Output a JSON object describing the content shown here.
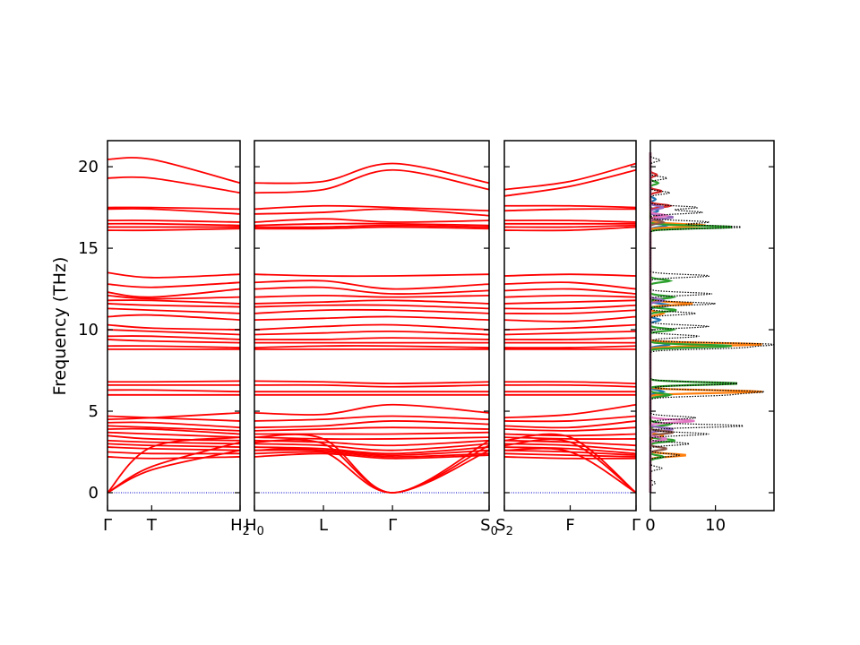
{
  "chart_data": {
    "type": "line",
    "ylabel": "Frequency (THz)",
    "ylim": [
      -1.1,
      21.6
    ],
    "yticks": [
      "0",
      "5",
      "10",
      "15",
      "20"
    ],
    "band_color": "#ff0000",
    "zero_line_color": "#0000cd",
    "panels": [
      {
        "segments": [
          {
            "x_range": [
              0,
              1
            ],
            "labels": [
              "Γ",
              "T"
            ]
          },
          {
            "x_range": [
              1,
              3
            ],
            "labels": [
              "T",
              "H2"
            ]
          }
        ],
        "x_ticks": [
          {
            "x": 0,
            "label": "Γ"
          },
          {
            "x": 1,
            "label": "T"
          },
          {
            "x": 3,
            "label": "H2"
          }
        ],
        "flat_bands": [
          [
            20.45,
            20.45,
            19.0
          ],
          [
            19.3,
            19.3,
            18.4
          ],
          [
            17.5,
            17.5,
            17.4
          ],
          [
            17.4,
            17.4,
            17.1
          ],
          [
            16.7,
            16.7,
            16.6
          ],
          [
            16.5,
            16.5,
            16.4
          ],
          [
            16.3,
            16.3,
            16.3
          ],
          [
            16.1,
            16.1,
            16.2
          ],
          [
            13.5,
            13.2,
            13.4
          ],
          [
            12.8,
            12.6,
            12.9
          ],
          [
            12.3,
            12.0,
            12.5
          ],
          [
            12.1,
            11.9,
            12.0
          ],
          [
            11.8,
            11.8,
            11.6
          ],
          [
            11.6,
            11.5,
            11.4
          ],
          [
            11.3,
            11.2,
            11.0
          ],
          [
            10.8,
            10.9,
            10.6
          ],
          [
            10.3,
            10.1,
            10.0
          ],
          [
            10.0,
            9.9,
            9.7
          ],
          [
            9.6,
            9.6,
            9.4
          ],
          [
            9.4,
            9.3,
            9.2
          ],
          [
            9.0,
            9.0,
            8.9
          ],
          [
            8.8,
            8.8,
            8.8
          ],
          [
            6.8,
            6.8,
            6.85
          ],
          [
            6.6,
            6.6,
            6.6
          ],
          [
            6.3,
            6.3,
            6.2
          ],
          [
            6.0,
            6.0,
            6.0
          ],
          [
            4.7,
            4.6,
            4.4
          ],
          [
            4.5,
            4.6,
            4.9
          ],
          [
            4.3,
            4.3,
            4.0
          ],
          [
            4.1,
            4.0,
            3.8
          ],
          [
            3.9,
            3.9,
            3.6
          ],
          [
            3.7,
            3.6,
            3.4
          ],
          [
            3.5,
            3.3,
            3.2
          ],
          [
            3.2,
            3.1,
            3.0
          ],
          [
            3.0,
            2.9,
            2.8
          ],
          [
            2.8,
            2.7,
            2.6
          ],
          [
            2.5,
            2.4,
            2.4
          ],
          [
            2.2,
            2.1,
            2.2
          ]
        ],
        "acoustic_bands": [
          [
            0,
            2.8,
            3.4
          ],
          [
            0,
            1.6,
            3.1
          ],
          [
            0,
            1.4,
            2.6
          ]
        ]
      },
      {
        "segments": [
          {
            "x_range": [
              0,
              1
            ],
            "labels": [
              "H0",
              "L"
            ]
          },
          {
            "x_range": [
              1,
              2
            ],
            "labels": [
              "L",
              "Γ"
            ]
          },
          {
            "x_range": [
              2,
              3.4
            ],
            "labels": [
              "Γ",
              "S0"
            ]
          }
        ],
        "x_ticks": [
          {
            "x": 0,
            "label": "H0"
          },
          {
            "x": 1,
            "label": "L"
          },
          {
            "x": 2,
            "label": "Γ"
          },
          {
            "x": 3.4,
            "label": "S0"
          }
        ],
        "flat_bands": [
          [
            19.0,
            19.1,
            20.2,
            19.0
          ],
          [
            18.4,
            18.6,
            19.8,
            18.6
          ],
          [
            17.4,
            17.6,
            17.5,
            17.3
          ],
          [
            17.1,
            17.2,
            17.4,
            17.0
          ],
          [
            16.6,
            16.8,
            16.6,
            16.7
          ],
          [
            16.4,
            16.5,
            16.5,
            16.4
          ],
          [
            16.3,
            16.3,
            16.4,
            16.3
          ],
          [
            16.2,
            16.2,
            16.3,
            16.2
          ],
          [
            13.4,
            13.3,
            13.3,
            13.4
          ],
          [
            12.9,
            13.0,
            12.5,
            12.8
          ],
          [
            12.5,
            12.6,
            12.2,
            12.4
          ],
          [
            12.0,
            12.1,
            12.0,
            12.1
          ],
          [
            11.6,
            11.7,
            11.8,
            11.6
          ],
          [
            11.4,
            11.5,
            11.5,
            11.3
          ],
          [
            11.0,
            11.2,
            11.2,
            11.0
          ],
          [
            10.6,
            10.7,
            10.8,
            10.6
          ],
          [
            10.0,
            10.2,
            10.3,
            10.0
          ],
          [
            9.7,
            9.8,
            9.9,
            9.7
          ],
          [
            9.4,
            9.4,
            9.5,
            9.4
          ],
          [
            9.2,
            9.2,
            9.2,
            9.2
          ],
          [
            8.9,
            9.0,
            9.0,
            8.9
          ],
          [
            8.8,
            8.8,
            8.8,
            8.8
          ],
          [
            6.85,
            6.8,
            6.7,
            6.8
          ],
          [
            6.6,
            6.6,
            6.5,
            6.6
          ],
          [
            6.2,
            6.2,
            6.2,
            6.2
          ],
          [
            6.0,
            6.0,
            6.0,
            6.0
          ],
          [
            4.9,
            4.8,
            5.4,
            4.9
          ],
          [
            4.4,
            4.5,
            4.7,
            4.5
          ],
          [
            4.0,
            4.1,
            4.4,
            4.2
          ],
          [
            3.8,
            3.9,
            4.0,
            3.9
          ],
          [
            3.6,
            3.6,
            3.6,
            3.7
          ],
          [
            3.4,
            3.3,
            3.3,
            3.4
          ],
          [
            3.2,
            3.1,
            2.9,
            3.2
          ],
          [
            3.0,
            2.9,
            2.6,
            3.0
          ],
          [
            2.8,
            2.7,
            2.4,
            2.8
          ],
          [
            2.6,
            2.6,
            2.3,
            2.6
          ],
          [
            2.4,
            2.5,
            2.2,
            2.4
          ],
          [
            2.2,
            2.4,
            2.1,
            2.3
          ]
        ],
        "acoustic_bands": [
          [
            3.4,
            3.3,
            0,
            3.2
          ],
          [
            3.1,
            3.0,
            0,
            2.9
          ],
          [
            2.6,
            2.5,
            0,
            2.6
          ]
        ]
      },
      {
        "segments": [
          {
            "x_range": [
              0,
              1
            ],
            "labels": [
              "S2",
              "F"
            ]
          },
          {
            "x_range": [
              1,
              2
            ],
            "labels": [
              "F",
              "Γ"
            ]
          }
        ],
        "x_ticks": [
          {
            "x": 0,
            "label": "S2"
          },
          {
            "x": 1,
            "label": "F"
          },
          {
            "x": 2,
            "label": "Γ"
          }
        ],
        "flat_bands": [
          [
            18.6,
            19.1,
            20.2
          ],
          [
            18.2,
            18.8,
            19.8
          ],
          [
            17.6,
            17.6,
            17.5
          ],
          [
            17.3,
            17.4,
            17.4
          ],
          [
            16.7,
            16.7,
            16.6
          ],
          [
            16.5,
            16.5,
            16.5
          ],
          [
            16.3,
            16.3,
            16.4
          ],
          [
            16.1,
            16.1,
            16.3
          ],
          [
            13.3,
            13.4,
            13.3
          ],
          [
            12.8,
            12.9,
            12.5
          ],
          [
            12.4,
            12.5,
            12.2
          ],
          [
            12.0,
            12.1,
            12.0
          ],
          [
            11.6,
            11.7,
            11.8
          ],
          [
            11.3,
            11.3,
            11.5
          ],
          [
            11.0,
            11.0,
            11.2
          ],
          [
            10.6,
            10.5,
            10.8
          ],
          [
            10.0,
            10.1,
            10.3
          ],
          [
            9.7,
            9.8,
            9.9
          ],
          [
            9.4,
            9.4,
            9.5
          ],
          [
            9.2,
            9.2,
            9.2
          ],
          [
            8.9,
            8.9,
            9.0
          ],
          [
            8.8,
            8.8,
            8.8
          ],
          [
            6.8,
            6.8,
            6.7
          ],
          [
            6.6,
            6.6,
            6.5
          ],
          [
            6.2,
            6.2,
            6.2
          ],
          [
            6.0,
            6.0,
            6.0
          ],
          [
            4.6,
            4.8,
            5.4
          ],
          [
            4.4,
            4.4,
            4.7
          ],
          [
            4.1,
            4.0,
            4.4
          ],
          [
            3.9,
            3.8,
            4.0
          ],
          [
            3.6,
            3.5,
            3.6
          ],
          [
            3.4,
            3.3,
            3.3
          ],
          [
            3.2,
            3.1,
            2.9
          ],
          [
            3.0,
            2.9,
            2.6
          ],
          [
            2.8,
            2.7,
            2.4
          ],
          [
            2.6,
            2.5,
            2.3
          ],
          [
            2.4,
            2.3,
            2.2
          ],
          [
            2.2,
            2.1,
            2.1
          ]
        ],
        "acoustic_bands": [
          [
            3.2,
            3.4,
            0
          ],
          [
            2.9,
            3.1,
            0
          ],
          [
            2.6,
            2.5,
            0
          ]
        ]
      }
    ],
    "dos": {
      "xlim": [
        0,
        19
      ],
      "xticks": [
        "0",
        "10"
      ],
      "total": {
        "color": "#000000",
        "style": "dotted",
        "peaks": [
          [
            0.6,
            0.8
          ],
          [
            1.5,
            1.8
          ],
          [
            2.3,
            4.5
          ],
          [
            3.0,
            6.0
          ],
          [
            3.6,
            9.0
          ],
          [
            4.1,
            14.6
          ],
          [
            4.6,
            7.0
          ],
          [
            6.0,
            11.0
          ],
          [
            6.2,
            16.6
          ],
          [
            6.7,
            13.7
          ],
          [
            8.9,
            13.0
          ],
          [
            9.1,
            18.4
          ],
          [
            9.6,
            7.5
          ],
          [
            10.2,
            9.0
          ],
          [
            11.0,
            7.0
          ],
          [
            11.6,
            10.0
          ],
          [
            12.2,
            9.5
          ],
          [
            13.3,
            9.2
          ],
          [
            16.3,
            14.2
          ],
          [
            16.6,
            9.0
          ],
          [
            17.2,
            8.0
          ],
          [
            17.5,
            7.3
          ],
          [
            18.4,
            3.0
          ],
          [
            19.3,
            2.6
          ],
          [
            20.4,
            1.5
          ]
        ]
      },
      "projections": [
        {
          "color": "#1f77b4",
          "peaks": [
            [
              3.3,
              2.5
            ],
            [
              6.2,
              2.0
            ],
            [
              9.1,
              3.0
            ],
            [
              10.6,
              1.5
            ],
            [
              11.5,
              3.0
            ],
            [
              16.4,
              2.5
            ],
            [
              17.3,
              1.2
            ],
            [
              18.0,
              0.8
            ]
          ]
        },
        {
          "color": "#ff7f0e",
          "peaks": [
            [
              2.3,
              5.5
            ],
            [
              3.5,
              2.0
            ],
            [
              6.2,
              17.2
            ],
            [
              9.1,
              17.5
            ],
            [
              11.0,
              2.0
            ],
            [
              11.6,
              6.5
            ],
            [
              16.4,
              8.5
            ]
          ]
        },
        {
          "color": "#2ca02c",
          "peaks": [
            [
              2.2,
              2.0
            ],
            [
              3.2,
              3.8
            ],
            [
              4.2,
              3.0
            ],
            [
              6.0,
              3.0
            ],
            [
              6.7,
              13.6
            ],
            [
              9.0,
              12.5
            ],
            [
              10.0,
              3.5
            ],
            [
              11.2,
              4.0
            ],
            [
              12.0,
              3.5
            ],
            [
              13.0,
              3.0
            ],
            [
              16.3,
              12.8
            ],
            [
              19.0,
              1.2
            ]
          ]
        },
        {
          "color": "#d62728",
          "peaks": [
            [
              17.0,
              1.5
            ],
            [
              17.6,
              3.0
            ],
            [
              18.5,
              1.7
            ],
            [
              19.5,
              1.0
            ]
          ]
        },
        {
          "color": "#9467bd",
          "peaks": [
            [
              3.9,
              3.5
            ],
            [
              11.8,
              2.0
            ],
            [
              16.9,
              3.5
            ],
            [
              17.5,
              2.0
            ]
          ]
        },
        {
          "color": "#8c564b",
          "peaks": [
            [
              2.7,
              2.5
            ],
            [
              3.7,
              3.5
            ],
            [
              16.6,
              2.0
            ]
          ]
        },
        {
          "color": "#e377c2",
          "peaks": [
            [
              4.4,
              6.8
            ],
            [
              3.3,
              2.5
            ],
            [
              17.0,
              2.5
            ]
          ]
        }
      ]
    }
  }
}
